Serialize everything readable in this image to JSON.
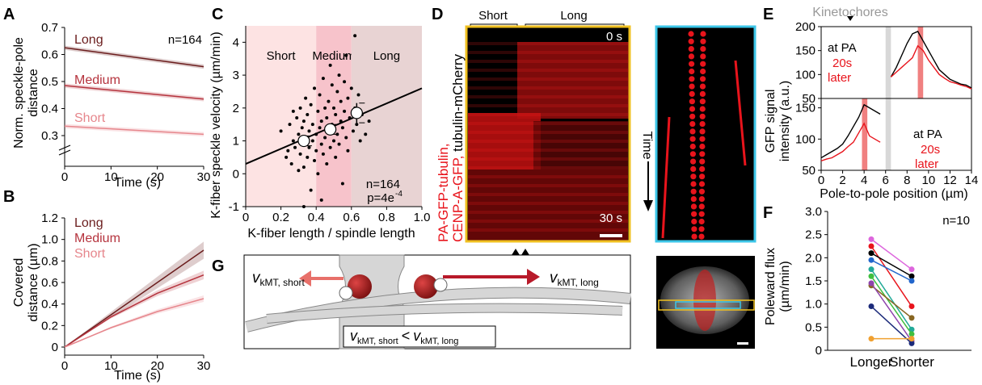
{
  "panels": {
    "A": {
      "label": "A",
      "n_label": "n=164",
      "ylabel_line1": "Norm. speckle-pole",
      "ylabel_line2": "distance",
      "xlabel": "Time (s)",
      "xticks": [
        "0",
        "10",
        "20",
        "30"
      ],
      "yticks": [
        "0.3",
        "0.4",
        "0.5",
        "0.6",
        "0.7"
      ],
      "series_labels": {
        "long": "Long",
        "medium": "Medium",
        "short": "Short"
      }
    },
    "B": {
      "label": "B",
      "ylabel_line1": "Covered",
      "ylabel_line2": "distance (µm)",
      "xlabel": "Time (s)",
      "xticks": [
        "0",
        "10",
        "20",
        "30"
      ],
      "yticks": [
        "0",
        "0.2",
        "0.4",
        "0.6",
        "0.8",
        "1.0",
        "1.2"
      ],
      "series_labels": {
        "long": "Long",
        "medium": "Medium",
        "short": "Short"
      }
    },
    "C": {
      "label": "C",
      "ylabel": "K-fiber speckle velocity (µm/min)",
      "xlabel": "K-fiber length / spindle length",
      "xticks": [
        "0",
        "0.2",
        "0.4",
        "0.6",
        "0.8",
        "1.0"
      ],
      "yticks": [
        "-1",
        "0",
        "1",
        "2",
        "3",
        "4"
      ],
      "region_labels": [
        "Short",
        "Medium",
        "Long"
      ],
      "n_label": "n=164",
      "p_label": "p=4e",
      "p_exp": "-4"
    },
    "D": {
      "label": "D",
      "header_short": "Short",
      "header_long": "Long",
      "time_start": "0 s",
      "time_end": "30 s",
      "time_axis_label": "Time",
      "legend_red_1": "PA-GFP-tubulin,",
      "legend_red_2": "CENP-A-GFP,",
      "legend_black": " tubulin-mCherry"
    },
    "E": {
      "label": "E",
      "kinetochores_label": "Kinetochores",
      "ylabel_line1": "GFP signal",
      "ylabel_line2": "intensity (a.u.)",
      "xlabel": "Pole-to-pole position (µm)",
      "xticks": [
        "0",
        "2",
        "4",
        "6",
        "8",
        "10",
        "12",
        "14"
      ],
      "yticks_top": [
        "50",
        "100",
        "150",
        "200"
      ],
      "yticks_bottom": [
        "50",
        "100",
        "150"
      ],
      "legend_at_pa": "at PA",
      "legend_20s": "20s",
      "legend_later": "later"
    },
    "F": {
      "label": "F",
      "n_label": "n=10",
      "ylabel_line1": "Poleward flux",
      "ylabel_line2": "(µm/min)",
      "xticks": [
        "Longer",
        "Shorter"
      ],
      "yticks": [
        "0",
        "0.5",
        "1.0",
        "1.5",
        "2.0",
        "2.5",
        "3.0"
      ]
    },
    "G": {
      "label": "G",
      "v_symbol": "v",
      "sub_short": "kMT, short",
      "sub_long": "kMT, long",
      "lt": "<"
    }
  },
  "chart_data": [
    {
      "type": "line",
      "panel": "A",
      "xlabel": "Time (s)",
      "ylabel": "Norm. speckle-pole distance",
      "xlim": [
        0,
        30
      ],
      "ylim": [
        0.3,
        0.7
      ],
      "axis_break": true,
      "series": [
        {
          "name": "Long",
          "x": [
            0,
            30
          ],
          "values": [
            0.625,
            0.555
          ],
          "color": "#6b1d1d"
        },
        {
          "name": "Medium",
          "x": [
            0,
            30
          ],
          "values": [
            0.485,
            0.435
          ],
          "color": "#b5333d"
        },
        {
          "name": "Short",
          "x": [
            0,
            30
          ],
          "values": [
            0.335,
            0.305
          ],
          "color": "#e6868c"
        }
      ]
    },
    {
      "type": "line",
      "panel": "B",
      "xlabel": "Time (s)",
      "ylabel": "Covered distance (µm)",
      "xlim": [
        0,
        30
      ],
      "ylim": [
        0,
        1.2
      ],
      "series": [
        {
          "name": "Long",
          "x": [
            0,
            10,
            20,
            30
          ],
          "values": [
            0,
            0.3,
            0.6,
            0.9
          ],
          "color": "#6b1d1d"
        },
        {
          "name": "Medium",
          "x": [
            0,
            10,
            20,
            30
          ],
          "values": [
            0,
            0.28,
            0.5,
            0.67
          ],
          "color": "#b5333d"
        },
        {
          "name": "Short",
          "x": [
            0,
            10,
            20,
            30
          ],
          "values": [
            0,
            0.18,
            0.33,
            0.45
          ],
          "color": "#e6868c"
        }
      ]
    },
    {
      "type": "scatter",
      "panel": "C",
      "xlabel": "K-fiber length / spindle length",
      "ylabel": "K-fiber speckle velocity (µm/min)",
      "xlim": [
        0,
        1.0
      ],
      "ylim": [
        -1,
        4.5
      ],
      "regions": [
        {
          "name": "Short",
          "from": 0,
          "to": 0.4,
          "color": "#fde3e3"
        },
        {
          "name": "Medium",
          "from": 0.4,
          "to": 0.6,
          "color": "#f7c3cb"
        },
        {
          "name": "Long",
          "from": 0.6,
          "to": 1.0,
          "color": "#e8d3d3"
        }
      ],
      "fit_line": {
        "x": [
          0,
          1.0
        ],
        "y": [
          0.3,
          2.6
        ]
      },
      "binned_means": [
        {
          "x": 0.33,
          "y": 1.0,
          "err": 0.15
        },
        {
          "x": 0.48,
          "y": 1.35,
          "err": 0.15
        },
        {
          "x": 0.63,
          "y": 1.85,
          "err": 0.3
        }
      ],
      "points": [
        [
          0.2,
          1.3
        ],
        [
          0.23,
          0.5
        ],
        [
          0.24,
          0.7
        ],
        [
          0.25,
          1.5
        ],
        [
          0.26,
          0.3
        ],
        [
          0.27,
          1.0
        ],
        [
          0.28,
          0.8
        ],
        [
          0.29,
          1.7
        ],
        [
          0.3,
          0.1
        ],
        [
          0.3,
          1.2
        ],
        [
          0.31,
          0.6
        ],
        [
          0.31,
          2.0
        ],
        [
          0.32,
          1.4
        ],
        [
          0.32,
          0.9
        ],
        [
          0.33,
          0.2
        ],
        [
          0.33,
          1.6
        ],
        [
          0.34,
          1.1
        ],
        [
          0.34,
          2.3
        ],
        [
          0.35,
          0.5
        ],
        [
          0.35,
          1.8
        ],
        [
          0.36,
          0.8
        ],
        [
          0.36,
          1.3
        ],
        [
          0.37,
          -0.5
        ],
        [
          0.37,
          2.1
        ],
        [
          0.38,
          1.0
        ],
        [
          0.38,
          1.5
        ],
        [
          0.39,
          0.4
        ],
        [
          0.39,
          2.6
        ],
        [
          0.4,
          1.2
        ],
        [
          0.4,
          0.7
        ],
        [
          0.41,
          1.9
        ],
        [
          0.41,
          0.0
        ],
        [
          0.42,
          1.4
        ],
        [
          0.42,
          2.4
        ],
        [
          0.43,
          0.9
        ],
        [
          0.43,
          1.6
        ],
        [
          0.44,
          2.9
        ],
        [
          0.44,
          0.6
        ],
        [
          0.45,
          1.1
        ],
        [
          0.45,
          2.0
        ],
        [
          0.46,
          1.7
        ],
        [
          0.46,
          0.3
        ],
        [
          0.47,
          2.2
        ],
        [
          0.47,
          1.3
        ],
        [
          0.48,
          0.8
        ],
        [
          0.48,
          3.3
        ],
        [
          0.49,
          1.5
        ],
        [
          0.49,
          2.7
        ],
        [
          0.5,
          1.0
        ],
        [
          0.5,
          2.0
        ],
        [
          0.51,
          0.5
        ],
        [
          0.51,
          1.8
        ],
        [
          0.52,
          2.5
        ],
        [
          0.52,
          1.2
        ],
        [
          0.53,
          3.0
        ],
        [
          0.53,
          0.9
        ],
        [
          0.54,
          1.6
        ],
        [
          0.54,
          2.2
        ],
        [
          0.55,
          -0.3
        ],
        [
          0.55,
          1.4
        ],
        [
          0.56,
          2.8
        ],
        [
          0.56,
          1.9
        ],
        [
          0.57,
          1.1
        ],
        [
          0.57,
          3.6
        ],
        [
          0.58,
          2.3
        ],
        [
          0.58,
          0.7
        ],
        [
          0.59,
          1.7
        ],
        [
          0.6,
          2.6
        ],
        [
          0.61,
          1.3
        ],
        [
          0.62,
          4.2
        ],
        [
          0.62,
          2.0
        ],
        [
          0.63,
          1.5
        ],
        [
          0.64,
          2.4
        ],
        [
          0.65,
          1.0
        ],
        [
          0.66,
          1.8
        ],
        [
          0.68,
          1.2
        ],
        [
          0.7,
          1.6
        ],
        [
          0.33,
          -1.0
        ],
        [
          0.43,
          -0.8
        ],
        [
          0.27,
          1.9
        ]
      ]
    },
    {
      "type": "line",
      "panel": "E-top",
      "xlabel": "Pole-to-pole position (µm)",
      "ylabel": "GFP signal intensity (a.u.)",
      "xlim": [
        0,
        14
      ],
      "ylim": [
        50,
        200
      ],
      "highlight_gray": [
        6,
        6.5
      ],
      "highlight_red": [
        9,
        9.5
      ],
      "series": [
        {
          "name": "at PA",
          "color": "#000000",
          "x": [
            6.5,
            7,
            7.5,
            8,
            8.5,
            9,
            9.5,
            10,
            10.5,
            11,
            11.5,
            12,
            12.5,
            13,
            13.5,
            14
          ],
          "values": [
            95,
            115,
            140,
            165,
            185,
            190,
            170,
            150,
            130,
            110,
            100,
            90,
            85,
            80,
            78,
            72
          ]
        },
        {
          "name": "20s later",
          "color": "#e8141c",
          "x": [
            6.5,
            7,
            7.5,
            8,
            8.5,
            9,
            9.5,
            10,
            10.5,
            11,
            11.5,
            12,
            12.5,
            13,
            13.5,
            14
          ],
          "values": [
            95,
            105,
            115,
            125,
            135,
            160,
            150,
            130,
            115,
            100,
            92,
            85,
            82,
            78,
            75,
            70
          ]
        }
      ]
    },
    {
      "type": "line",
      "panel": "E-bottom",
      "xlabel": "Pole-to-pole position (µm)",
      "ylabel": "GFP signal intensity (a.u.)",
      "xlim": [
        0,
        14
      ],
      "ylim": [
        50,
        160
      ],
      "highlight_gray": [
        6,
        6.5
      ],
      "highlight_red": [
        3.8,
        4.3
      ],
      "series": [
        {
          "name": "at PA",
          "color": "#000000",
          "x": [
            0,
            0.5,
            1,
            1.5,
            2,
            2.5,
            3,
            3.5,
            4,
            4.5,
            5,
            5.5
          ],
          "values": [
            70,
            75,
            80,
            85,
            92,
            105,
            120,
            135,
            155,
            150,
            145,
            140
          ]
        },
        {
          "name": "20s later",
          "color": "#e8141c",
          "x": [
            0,
            0.5,
            1,
            1.5,
            2,
            2.5,
            3,
            3.5,
            4,
            4.5,
            5,
            5.5
          ],
          "values": [
            65,
            68,
            70,
            75,
            80,
            88,
            95,
            110,
            125,
            105,
            100,
            95
          ]
        }
      ]
    },
    {
      "type": "line",
      "panel": "F",
      "ylabel": "Poleward flux (µm/min)",
      "categories": [
        "Longer",
        "Shorter"
      ],
      "ylim": [
        0,
        3.0
      ],
      "series": [
        {
          "name": "",
          "color": "#dd66dd",
          "values": [
            2.4,
            1.75
          ]
        },
        {
          "name": "",
          "color": "#e8141c",
          "values": [
            2.25,
            0.95
          ]
        },
        {
          "name": "",
          "color": "#000000",
          "values": [
            2.1,
            1.6
          ]
        },
        {
          "name": "",
          "color": "#2266cc",
          "values": [
            1.95,
            1.5
          ]
        },
        {
          "name": "",
          "color": "#22aa99",
          "values": [
            1.75,
            0.45
          ]
        },
        {
          "name": "",
          "color": "#3fbf3f",
          "values": [
            1.6,
            0.35
          ]
        },
        {
          "name": "",
          "color": "#886622",
          "values": [
            1.4,
            0.7
          ]
        },
        {
          "name": "",
          "color": "#8e44ad",
          "values": [
            1.45,
            0.2
          ]
        },
        {
          "name": "",
          "color": "#1b2a7a",
          "values": [
            0.95,
            0.15
          ]
        },
        {
          "name": "",
          "color": "#f0a030",
          "values": [
            0.25,
            0.25
          ]
        }
      ]
    }
  ]
}
